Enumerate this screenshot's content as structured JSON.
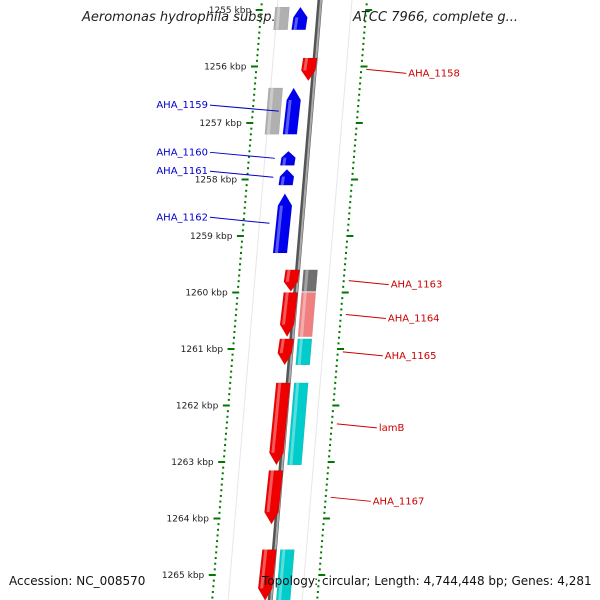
{
  "title": "Aeromonas hydrophila subsp. hydrophila ATCC 7966, complete g...",
  "accession": "Accession: NC_008570",
  "topology": "Topology: circular; Length: 4,744,448 bp; Genes: 4,281",
  "colors": {
    "forward": "#0000ee",
    "reverse": "#ee0000",
    "grey": "#b0b0b0",
    "dark_grey": "#707070",
    "pink": "#f08080",
    "cyan": "#00cccc",
    "tick": "#007700",
    "backbone": "#888888",
    "label_blue": "#0000cc",
    "label_red": "#cc0000"
  },
  "ruler": {
    "unit": "kbp",
    "first_kbp": 1255,
    "ticks": [
      "1255 kbp",
      "1256 kbp",
      "1257 kbp",
      "1258 kbp",
      "1259 kbp",
      "1260 kbp",
      "1261 kbp",
      "1262 kbp",
      "1263 kbp",
      "1264 kbp",
      "1265 kbp"
    ]
  },
  "genes": [
    {
      "label": "",
      "strand": "+",
      "start_kbp": 1254.95,
      "end_kbp": 1255.35,
      "ring": "inner",
      "color": "#0000ee"
    },
    {
      "label": "",
      "strand": "+",
      "start_kbp": 1254.95,
      "end_kbp": 1255.35,
      "ring": "outer-grey",
      "color": "#b0b0b0"
    },
    {
      "label": "AHA_1158",
      "strand": "-",
      "start_kbp": 1255.85,
      "end_kbp": 1256.25,
      "ring": "inner",
      "color": "#ee0000"
    },
    {
      "label": "AHA_1159",
      "strand": "+",
      "start_kbp": 1256.38,
      "end_kbp": 1257.2,
      "ring": "inner",
      "color": "#0000ee"
    },
    {
      "label": "",
      "strand": "+",
      "start_kbp": 1256.38,
      "end_kbp": 1257.2,
      "ring": "outer-grey",
      "color": "#b0b0b0"
    },
    {
      "label": "AHA_1160",
      "strand": "+",
      "start_kbp": 1257.5,
      "end_kbp": 1257.75,
      "ring": "inner",
      "color": "#0000ee"
    },
    {
      "label": "AHA_1161",
      "strand": "+",
      "start_kbp": 1257.82,
      "end_kbp": 1258.1,
      "ring": "inner",
      "color": "#0000ee"
    },
    {
      "label": "AHA_1162",
      "strand": "+",
      "start_kbp": 1258.25,
      "end_kbp": 1259.3,
      "ring": "inner",
      "color": "#0000ee"
    },
    {
      "label": "AHA_1163",
      "strand": "-",
      "start_kbp": 1259.6,
      "end_kbp": 1259.98,
      "ring": "inner",
      "color": "#ee0000"
    },
    {
      "label": "",
      "strand": "-",
      "start_kbp": 1259.6,
      "end_kbp": 1259.98,
      "ring": "outer-grey",
      "color": "#707070"
    },
    {
      "label": "AHA_1164",
      "strand": "-",
      "start_kbp": 1260.0,
      "end_kbp": 1260.78,
      "ring": "inner",
      "color": "#ee0000"
    },
    {
      "label": "",
      "strand": "-",
      "start_kbp": 1260.0,
      "end_kbp": 1260.78,
      "ring": "outer-grey",
      "color": "#f08080"
    },
    {
      "label": "AHA_1165",
      "strand": "-",
      "start_kbp": 1260.82,
      "end_kbp": 1261.28,
      "ring": "inner",
      "color": "#ee0000"
    },
    {
      "label": "",
      "strand": "-",
      "start_kbp": 1260.82,
      "end_kbp": 1261.28,
      "ring": "outer-grey",
      "color": "#00cccc"
    },
    {
      "label": "lamB",
      "strand": "-",
      "start_kbp": 1261.6,
      "end_kbp": 1263.05,
      "ring": "inner",
      "color": "#ee0000"
    },
    {
      "label": "",
      "strand": "-",
      "start_kbp": 1261.6,
      "end_kbp": 1263.05,
      "ring": "outer-grey",
      "color": "#00cccc"
    },
    {
      "label": "AHA_1167",
      "strand": "-",
      "start_kbp": 1263.15,
      "end_kbp": 1264.1,
      "ring": "inner",
      "color": "#ee0000"
    },
    {
      "label": "",
      "strand": "-",
      "start_kbp": 1264.55,
      "end_kbp": 1265.45,
      "ring": "inner",
      "color": "#ee0000"
    },
    {
      "label": "",
      "strand": "-",
      "start_kbp": 1264.55,
      "end_kbp": 1265.45,
      "ring": "outer-grey",
      "color": "#00cccc"
    }
  ]
}
